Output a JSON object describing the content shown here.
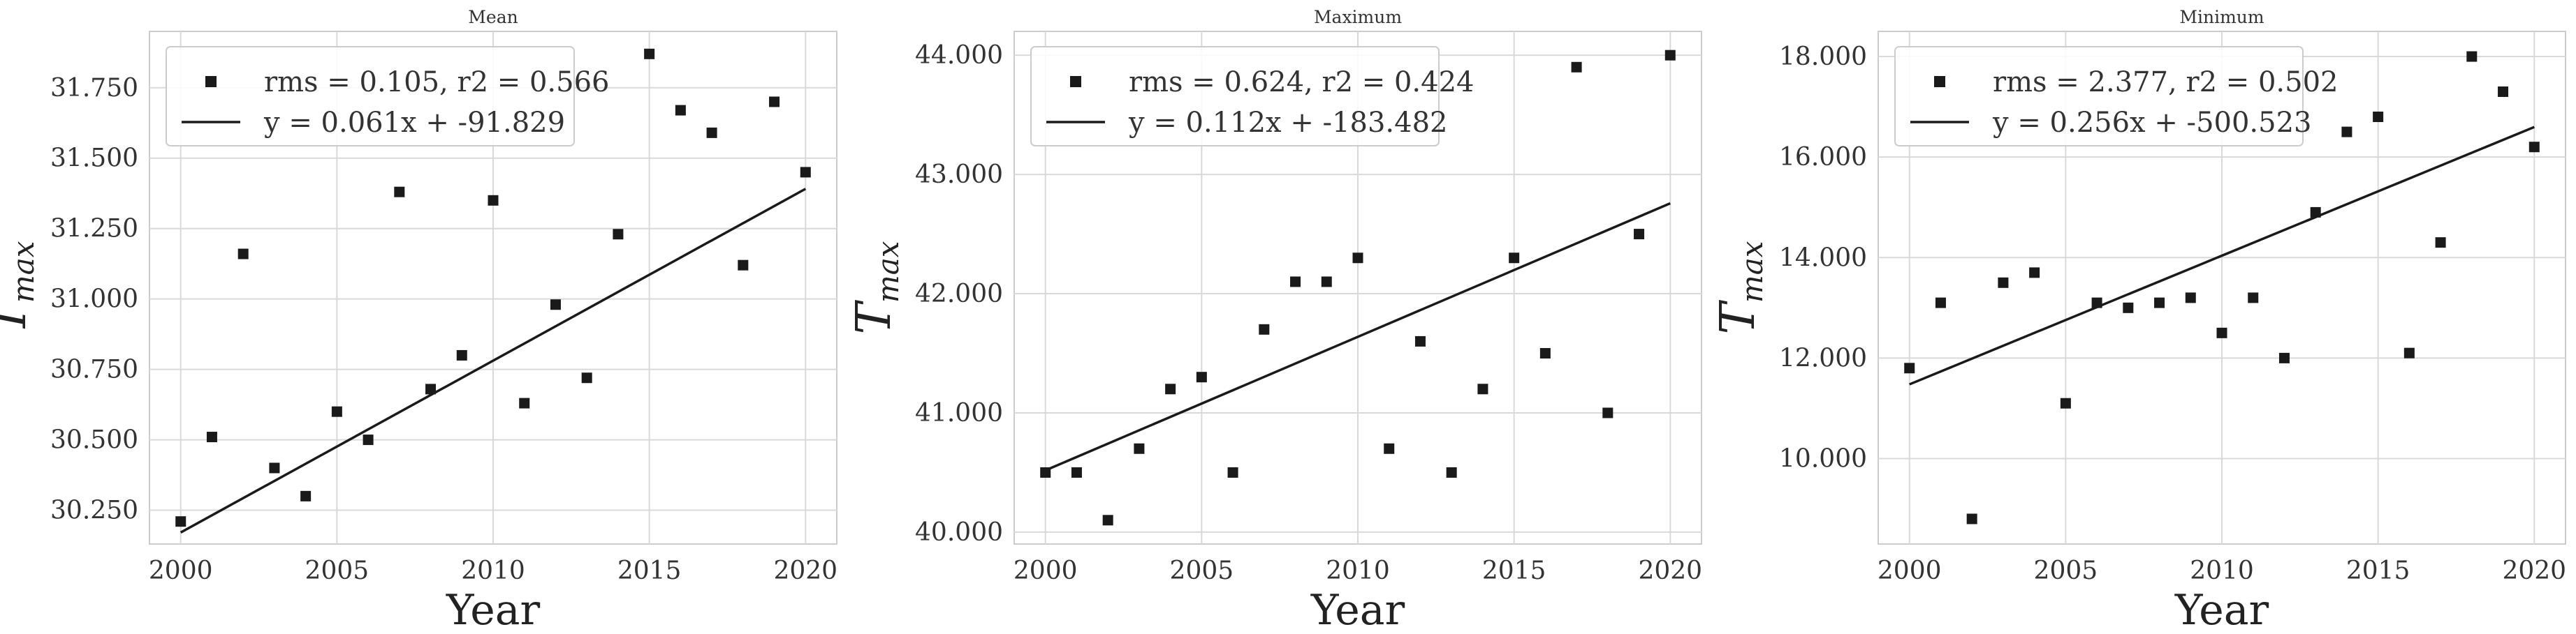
{
  "chart_data": [
    {
      "type": "scatter",
      "title": "Mean",
      "xlabel": "Year",
      "ylabel": "T",
      "ylabel_sub": "max",
      "xlim": [
        1999,
        2021
      ],
      "ylim": [
        30.13,
        31.95
      ],
      "xticks": [
        2000,
        2005,
        2010,
        2015,
        2020
      ],
      "yticks": [
        30.25,
        30.5,
        30.75,
        31.0,
        31.25,
        31.5,
        31.75
      ],
      "ytick_labels": [
        "30.250",
        "30.500",
        "30.750",
        "31.000",
        "31.250",
        "31.500",
        "31.750"
      ],
      "grid": true,
      "legend_position": "top-left",
      "x": [
        2000,
        2001,
        2002,
        2003,
        2004,
        2005,
        2006,
        2007,
        2008,
        2009,
        2010,
        2011,
        2012,
        2013,
        2014,
        2015,
        2016,
        2017,
        2018,
        2019,
        2020
      ],
      "y": [
        30.21,
        30.51,
        31.16,
        30.4,
        30.3,
        30.6,
        30.5,
        31.38,
        30.68,
        30.8,
        31.35,
        30.63,
        30.98,
        30.72,
        31.23,
        31.87,
        31.67,
        31.59,
        31.12,
        31.7,
        31.45
      ],
      "fit": {
        "slope": 0.061,
        "intercept": -91.829
      },
      "legend": [
        "rms = 0.105, r2 = 0.566",
        "y = 0.061x + -91.829"
      ]
    },
    {
      "type": "scatter",
      "title": "Maximum",
      "xlabel": "Year",
      "ylabel": "T",
      "ylabel_sub": "max",
      "xlim": [
        1999,
        2021
      ],
      "ylim": [
        39.9,
        44.2
      ],
      "xticks": [
        2000,
        2005,
        2010,
        2015,
        2020
      ],
      "yticks": [
        40,
        41,
        42,
        43,
        44
      ],
      "ytick_labels": [
        "40.000",
        "41.000",
        "42.000",
        "43.000",
        "44.000"
      ],
      "grid": true,
      "legend_position": "top-left",
      "x": [
        2000,
        2001,
        2002,
        2003,
        2004,
        2005,
        2006,
        2007,
        2008,
        2009,
        2010,
        2011,
        2012,
        2013,
        2014,
        2015,
        2016,
        2017,
        2018,
        2019,
        2020
      ],
      "y": [
        40.5,
        40.5,
        40.1,
        40.7,
        41.2,
        41.3,
        40.5,
        41.7,
        42.1,
        42.1,
        42.3,
        40.7,
        41.6,
        40.5,
        41.2,
        42.3,
        41.5,
        43.9,
        41.0,
        42.5,
        44.0
      ],
      "fit": {
        "slope": 0.112,
        "intercept": -183.482
      },
      "legend": [
        "rms = 0.624, r2 = 0.424",
        "y = 0.112x + -183.482"
      ]
    },
    {
      "type": "scatter",
      "title": "Minimum",
      "xlabel": "Year",
      "ylabel": "T",
      "ylabel_sub": "max",
      "xlim": [
        1999,
        2021
      ],
      "ylim": [
        8.3,
        18.5
      ],
      "xticks": [
        2000,
        2005,
        2010,
        2015,
        2020
      ],
      "yticks": [
        10,
        12,
        14,
        16,
        18
      ],
      "ytick_labels": [
        "10.000",
        "12.000",
        "14.000",
        "16.000",
        "18.000"
      ],
      "grid": true,
      "legend_position": "top-left",
      "x": [
        2000,
        2001,
        2002,
        2003,
        2004,
        2005,
        2006,
        2007,
        2008,
        2009,
        2010,
        2011,
        2012,
        2013,
        2014,
        2015,
        2016,
        2017,
        2018,
        2019,
        2020
      ],
      "y": [
        11.8,
        13.1,
        8.8,
        13.5,
        13.7,
        11.1,
        13.1,
        13.0,
        13.1,
        13.2,
        12.5,
        13.2,
        12.0,
        14.9,
        16.5,
        16.8,
        12.1,
        14.3,
        18.0,
        17.3,
        16.2
      ],
      "fit": {
        "slope": 0.256,
        "intercept": -500.523
      },
      "legend": [
        "rms = 2.377, r2 = 0.502",
        "y = 0.256x + -500.523"
      ]
    }
  ]
}
